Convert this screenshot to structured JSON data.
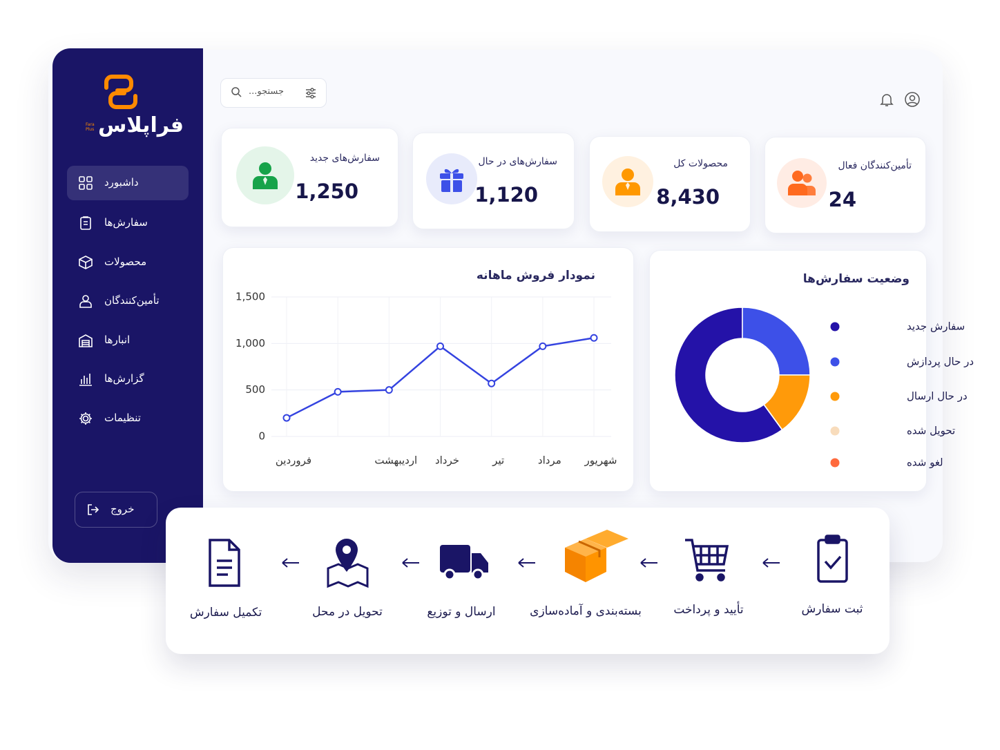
{
  "brand": {
    "name": "فراپلاس",
    "latin": "Fara Plus"
  },
  "search": {
    "placeholder": "جستجو..."
  },
  "nav": [
    "داشبورد",
    "سفارش‌ها",
    "محصولات",
    "تأمین‌کنندگان",
    "انبارها",
    "گزارش‌ها",
    "تنظیمات"
  ],
  "logout": "خروج",
  "stats": [
    {
      "label": "سفارش‌های جدید",
      "value": "1,250"
    },
    {
      "label": "سفارش‌های در حال",
      "value": "1,120"
    },
    {
      "label": "محصولات کل",
      "value": "8,430"
    },
    {
      "label": "تأمین‌کنندگان فعال",
      "value": "24"
    }
  ],
  "chart_data": [
    {
      "type": "line",
      "title": "نمودار فروش ماهانه",
      "categories": [
        "فروردین",
        null,
        "اردیبهشت",
        "خرداد",
        "تیر",
        "مرداد",
        "شهریور"
      ],
      "values": [
        200,
        480,
        500,
        970,
        570,
        970,
        1060
      ],
      "color": "#3443e0",
      "ylim": [
        0,
        1500
      ],
      "yticks": [
        0,
        500,
        {
          "value": 1000,
          "label": "1,000"
        },
        {
          "value": 1500,
          "label": "1,500"
        }
      ],
      "grid": true
    },
    {
      "type": "pie",
      "title": "وضعیت سفارش‌ها",
      "categories": [
        "سفارش جدید",
        "در حال پردازش",
        "در حال ارسال",
        "تحویل شده",
        "لغو شده"
      ],
      "values": [
        60,
        25,
        15,
        0,
        0
      ],
      "colors": [
        "#2412a8",
        "#3d50e8",
        "#ff9a0a",
        "#f8dcbc",
        "#ff6a3d"
      ],
      "donut": true
    }
  ],
  "workflow": [
    "ثبت سفارش",
    "تأیید و پرداخت",
    "بسته‌بندی و آماده‌سازی",
    "ارسال و توزیع",
    "تحویل در محل",
    "تکمیل سفارش"
  ]
}
